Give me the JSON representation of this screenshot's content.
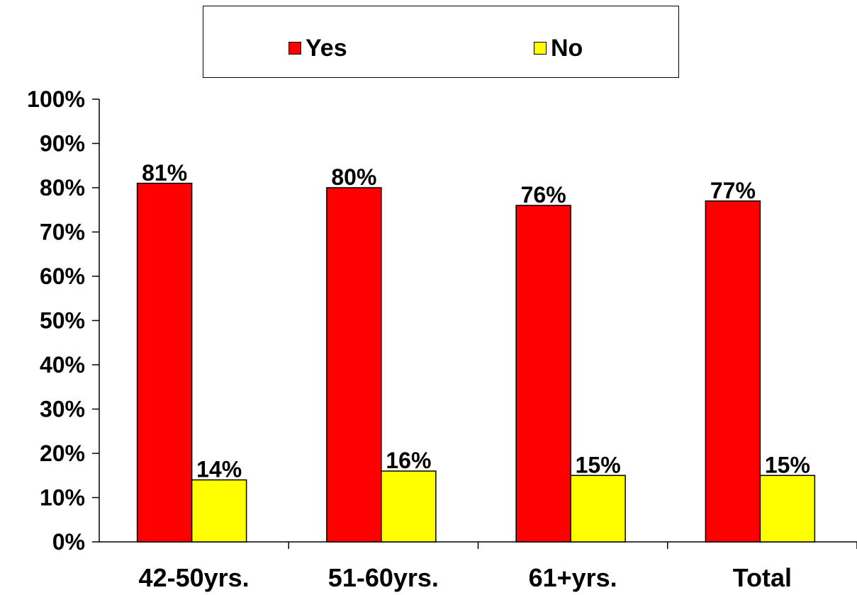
{
  "chart_data": {
    "type": "bar",
    "title": "",
    "xlabel": "",
    "ylabel": "",
    "categories": [
      "42-50yrs.",
      "51-60yrs.",
      "61+yrs.",
      "Total"
    ],
    "series": [
      {
        "name": "Yes",
        "color": "#ff0000",
        "values": [
          81,
          80,
          76,
          77
        ],
        "labels": [
          "81%",
          "80%",
          "76%",
          "77%"
        ]
      },
      {
        "name": "No",
        "color": "#ffff00",
        "values": [
          14,
          16,
          15,
          15
        ],
        "labels": [
          "14%",
          "16%",
          "15%",
          "15%"
        ]
      }
    ],
    "ylim": [
      0,
      100
    ],
    "yticks": [
      0,
      10,
      20,
      30,
      40,
      50,
      60,
      70,
      80,
      90,
      100
    ],
    "ytick_labels": [
      "0%",
      "10%",
      "20%",
      "30%",
      "40%",
      "50%",
      "60%",
      "70%",
      "80%",
      "90%",
      "100%"
    ],
    "grid": false,
    "legend_position": "top-center"
  }
}
